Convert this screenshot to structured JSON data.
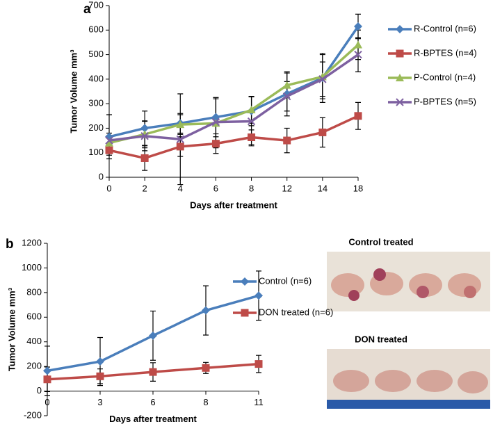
{
  "chart_data": [
    {
      "type": "line",
      "panel": "a",
      "ylabel": "Tumor Volume mm³",
      "xlabel": "Days after treatment",
      "categories": [
        "0",
        "2",
        "4",
        "6",
        "8",
        "12",
        "14",
        "18"
      ],
      "ylim": [
        0,
        700
      ],
      "yticks": [
        0,
        100,
        200,
        300,
        400,
        500,
        600,
        700
      ],
      "legend": "right",
      "series": [
        {
          "name": "R-Control (n=6)",
          "color": "#4a7ebb",
          "marker": "diamond",
          "values": [
            165,
            200,
            220,
            245,
            270,
            340,
            405,
            615
          ],
          "errors": [
            90,
            70,
            40,
            80,
            60,
            90,
            100,
            50
          ]
        },
        {
          "name": "R-BPTES (n=4)",
          "color": "#be4b48",
          "marker": "square",
          "values": [
            110,
            78,
            125,
            137,
            163,
            150,
            183,
            250
          ],
          "errors": [
            20,
            50,
            40,
            40,
            30,
            50,
            60,
            55
          ]
        },
        {
          "name": "P-Control (n=4)",
          "color": "#9bbb59",
          "marker": "triangle",
          "values": [
            140,
            175,
            215,
            220,
            275,
            375,
            410,
            540
          ],
          "errors": [
            30,
            55,
            40,
            100,
            55,
            50,
            90,
            60
          ]
        },
        {
          "name": "P-BPTES (n=5)",
          "color": "#7d60a0",
          "marker": "x",
          "values": [
            150,
            168,
            155,
            225,
            228,
            330,
            400,
            500
          ],
          "errors": [
            30,
            60,
            185,
            100,
            100,
            60,
            70,
            70
          ]
        }
      ]
    },
    {
      "type": "line",
      "panel": "b",
      "ylabel": "Tumor Volume mm³",
      "xlabel": "Days after treatment",
      "categories": [
        "0",
        "3",
        "6",
        "8",
        "11"
      ],
      "ylim": [
        -200,
        1200
      ],
      "yticks": [
        -200,
        0,
        200,
        400,
        600,
        800,
        1000,
        1200
      ],
      "legend": "right",
      "series": [
        {
          "name": "Control (n=6)",
          "color": "#4a7ebb",
          "marker": "diamond",
          "values": [
            165,
            240,
            450,
            655,
            775
          ],
          "errors": [
            200,
            195,
            200,
            200,
            200
          ]
        },
        {
          "name": "DON treated (n=6)",
          "color": "#be4b48",
          "marker": "square",
          "values": [
            95,
            120,
            155,
            188,
            220
          ],
          "errors": [
            100,
            60,
            75,
            45,
            70
          ]
        }
      ]
    }
  ],
  "photos": [
    {
      "caption": "Control treated"
    },
    {
      "caption": "DON treated"
    }
  ]
}
